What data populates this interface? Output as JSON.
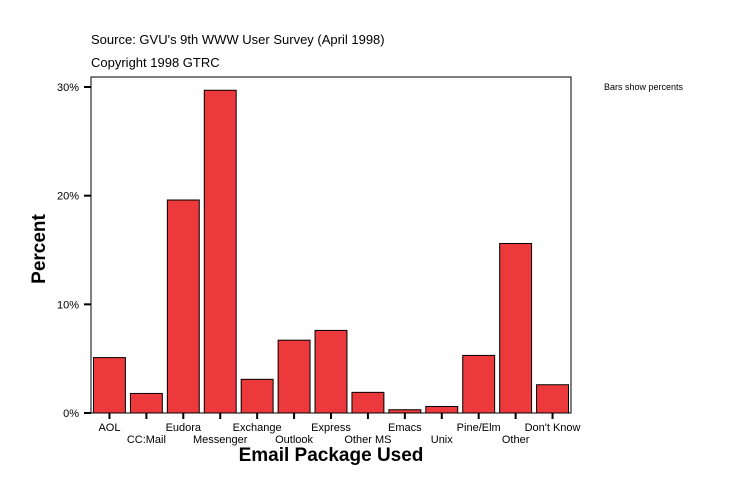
{
  "source": "Source: GVU's 9th WWW User Survey (April 1998)",
  "copyright": "Copyright 1998 GTRC",
  "note": "Bars show percents",
  "chart_data": {
    "type": "bar",
    "title": "",
    "xlabel": "Email Package Used",
    "ylabel": "Percent",
    "categories": [
      "AOL",
      "CC:Mail",
      "Eudora",
      "Messenger",
      "Exchange",
      "Outlook",
      "Express",
      "Other MS",
      "Emacs",
      "Unix",
      "Pine/Elm",
      "Other",
      "Don't Know"
    ],
    "values": [
      5.1,
      1.8,
      19.6,
      29.7,
      3.1,
      6.7,
      7.6,
      1.9,
      0.3,
      0.6,
      5.3,
      15.6,
      2.6
    ],
    "ylim": [
      0,
      30
    ],
    "yticks": [
      0,
      10,
      20,
      30
    ],
    "ytick_labels": [
      "0%",
      "10%",
      "20%",
      "30%"
    ],
    "grid": false,
    "bar_color": "#ec3a3c"
  }
}
